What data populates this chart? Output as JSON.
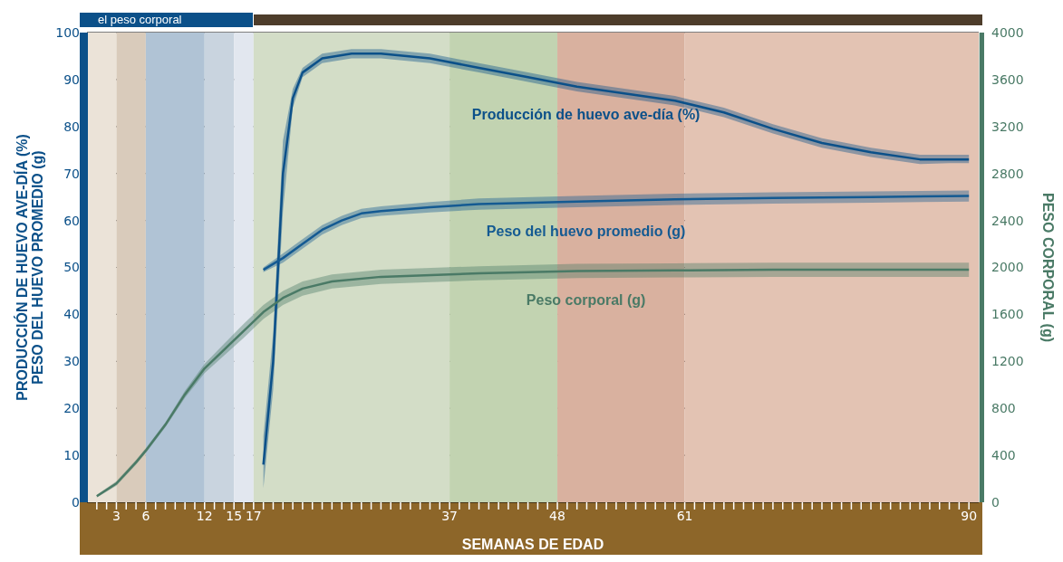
{
  "chart_data": {
    "type": "line",
    "xlabel": "SEMANAS DE EDAD",
    "ylabel": "PRODUCCIÓN  DE HUEVO AVE-DÍA  (%)\nPESO DEL HUEVO PROMEDIO (g)",
    "y2label": "PESO CORPORAL (g)",
    "annotations": [
      "el peso corporal"
    ],
    "xlim": [
      0,
      91
    ],
    "xticks": [
      {
        "value": 1,
        "label": null
      },
      {
        "value": 2,
        "label": null
      },
      3,
      {
        "value": 4,
        "label": null
      },
      {
        "value": 5,
        "label": null
      },
      6,
      {
        "value": 7,
        "label": null
      },
      {
        "value": 8,
        "label": null
      },
      {
        "value": 9,
        "label": null
      },
      {
        "value": 10,
        "label": null
      },
      {
        "value": 11,
        "label": null
      },
      12,
      {
        "value": 13,
        "label": null
      },
      {
        "value": 14,
        "label": null
      },
      15,
      {
        "value": 16,
        "label": null
      },
      17,
      {
        "value": 18,
        "label": null
      },
      {
        "value": 19,
        "label": null
      },
      {
        "value": 20,
        "label": null
      },
      {
        "value": 21,
        "label": null
      },
      {
        "value": 22,
        "label": null
      },
      {
        "value": 23,
        "label": null
      },
      {
        "value": 24,
        "label": null
      },
      {
        "value": 25,
        "label": null
      },
      {
        "value": 26,
        "label": null
      },
      {
        "value": 27,
        "label": null
      },
      {
        "value": 28,
        "label": null
      },
      {
        "value": 29,
        "label": null
      },
      {
        "value": 30,
        "label": null
      },
      {
        "value": 31,
        "label": null
      },
      {
        "value": 32,
        "label": null
      },
      {
        "value": 33,
        "label": null
      },
      {
        "value": 34,
        "label": null
      },
      {
        "value": 35,
        "label": null
      },
      {
        "value": 36,
        "label": null
      },
      37,
      {
        "value": 38,
        "label": null
      },
      {
        "value": 39,
        "label": null
      },
      {
        "value": 40,
        "label": null
      },
      {
        "value": 41,
        "label": null
      },
      {
        "value": 42,
        "label": null
      },
      {
        "value": 43,
        "label": null
      },
      {
        "value": 44,
        "label": null
      },
      {
        "value": 45,
        "label": null
      },
      {
        "value": 46,
        "label": null
      },
      {
        "value": 47,
        "label": null
      },
      48,
      {
        "value": 49,
        "label": null
      },
      {
        "value": 50,
        "label": null
      },
      {
        "value": 51,
        "label": null
      },
      {
        "value": 52,
        "label": null
      },
      {
        "value": 53,
        "label": null
      },
      {
        "value": 54,
        "label": null
      },
      {
        "value": 55,
        "label": null
      },
      {
        "value": 56,
        "label": null
      },
      {
        "value": 57,
        "label": null
      },
      {
        "value": 58,
        "label": null
      },
      {
        "value": 59,
        "label": null
      },
      {
        "value": 60,
        "label": null
      },
      61,
      {
        "value": 62,
        "label": null
      },
      {
        "value": 63,
        "label": null
      },
      {
        "value": 64,
        "label": null
      },
      {
        "value": 65,
        "label": null
      },
      {
        "value": 66,
        "label": null
      },
      {
        "value": 67,
        "label": null
      },
      {
        "value": 68,
        "label": null
      },
      {
        "value": 69,
        "label": null
      },
      {
        "value": 70,
        "label": null
      },
      {
        "value": 71,
        "label": null
      },
      {
        "value": 72,
        "label": null
      },
      {
        "value": 73,
        "label": null
      },
      {
        "value": 74,
        "label": null
      },
      {
        "value": 75,
        "label": null
      },
      {
        "value": 76,
        "label": null
      },
      {
        "value": 77,
        "label": null
      },
      {
        "value": 78,
        "label": null
      },
      {
        "value": 79,
        "label": null
      },
      {
        "value": 80,
        "label": null
      },
      {
        "value": 81,
        "label": null
      },
      {
        "value": 82,
        "label": null
      },
      {
        "value": 83,
        "label": null
      },
      {
        "value": 84,
        "label": null
      },
      {
        "value": 85,
        "label": null
      },
      {
        "value": 86,
        "label": null
      },
      {
        "value": 87,
        "label": null
      },
      {
        "value": 88,
        "label": null
      },
      {
        "value": 89,
        "label": null
      },
      90
    ],
    "ylim": [
      0,
      100
    ],
    "yticks": [
      0,
      10,
      20,
      30,
      40,
      50,
      60,
      70,
      80,
      90,
      100
    ],
    "y2lim": [
      0,
      4000
    ],
    "y2ticks": [
      0,
      400,
      800,
      1200,
      1600,
      2000,
      2400,
      2800,
      3200,
      3600,
      4000
    ],
    "grid": true,
    "marker": "none",
    "line_style": "solid",
    "bands": [
      {
        "axis": "x",
        "from": 0,
        "to": 3,
        "color": "#ebe3d8"
      },
      {
        "axis": "x",
        "from": 3,
        "to": 6,
        "color": "#d9cbbb"
      },
      {
        "axis": "x",
        "from": 6,
        "to": 12,
        "color": "#b0c3d5"
      },
      {
        "axis": "x",
        "from": 12,
        "to": 15,
        "color": "#c9d4df"
      },
      {
        "axis": "x",
        "from": 15,
        "to": 17,
        "color": "#e2e7ef"
      },
      {
        "axis": "x",
        "from": 17,
        "to": 37,
        "color": "#d3ddc7"
      },
      {
        "axis": "x",
        "from": 37,
        "to": 48,
        "color": "#c2d3b1"
      },
      {
        "axis": "x",
        "from": 48,
        "to": 61,
        "color": "#d9b19f"
      },
      {
        "axis": "x",
        "from": 61,
        "to": 91,
        "color": "#e3c3b3"
      }
    ],
    "series": [
      {
        "name": "Producción de huevo ave-día (%)",
        "color": "#0b5089",
        "x": [
          18,
          19,
          20,
          21,
          22,
          24,
          27,
          30,
          35,
          40,
          45,
          50,
          55,
          60,
          65,
          70,
          75,
          80,
          85,
          88,
          90
        ],
        "values": [
          8,
          30,
          70,
          86,
          91.5,
          94.5,
          95.5,
          95.5,
          94.5,
          92.5,
          90.5,
          88.5,
          87,
          85.5,
          83,
          79.5,
          76.5,
          74.5,
          73,
          73,
          73
        ],
        "lower": [
          3,
          24,
          62,
          84,
          90.5,
          93.5,
          94.5,
          94.5,
          93.5,
          91.5,
          89.5,
          87.5,
          86,
          84.5,
          82,
          78.5,
          75.5,
          73.5,
          72,
          72.2,
          72.2
        ],
        "upper": [
          14,
          36,
          77,
          88,
          92.5,
          95.5,
          96.5,
          96.5,
          95.5,
          93.5,
          91.5,
          89.5,
          88,
          86.5,
          84,
          80.5,
          77.5,
          75.5,
          74,
          74,
          74
        ]
      },
      {
        "name": "Peso del huevo promedio (g)",
        "color": "#145a92",
        "x": [
          18,
          20,
          22,
          24,
          26,
          28,
          30,
          35,
          40,
          50,
          60,
          70,
          80,
          90
        ],
        "values": [
          49.5,
          52,
          55,
          58,
          60,
          61.5,
          62,
          62.8,
          63.5,
          64,
          64.5,
          64.8,
          65,
          65.2
        ],
        "lower": [
          49,
          51,
          54,
          57,
          59,
          60.5,
          61,
          61.7,
          62.3,
          62.8,
          63.3,
          63.6,
          63.8,
          64
        ],
        "upper": [
          50,
          53,
          56,
          59,
          61,
          62.5,
          63,
          63.9,
          64.7,
          65.2,
          65.7,
          66,
          66.2,
          66.4
        ]
      },
      {
        "name": "Peso corporal (g)",
        "color": "#4a7a66",
        "axis": "y2",
        "x": [
          1,
          3,
          5,
          6,
          8,
          10,
          12,
          14,
          16,
          18,
          20,
          22,
          25,
          30,
          40,
          50,
          60,
          70,
          90
        ],
        "values": [
          52,
          160,
          340,
          440,
          660,
          920,
          1140,
          1300,
          1460,
          1620,
          1740,
          1820,
          1880,
          1920,
          1950,
          1970,
          1975,
          1980,
          1980
        ],
        "lower": [
          40,
          140,
          320,
          420,
          640,
          890,
          1100,
          1250,
          1400,
          1560,
          1680,
          1760,
          1820,
          1860,
          1890,
          1910,
          1915,
          1920,
          1920
        ],
        "upper": [
          64,
          180,
          360,
          460,
          680,
          950,
          1180,
          1350,
          1520,
          1680,
          1800,
          1880,
          1940,
          1980,
          2010,
          2030,
          2035,
          2040,
          2040
        ]
      }
    ]
  }
}
